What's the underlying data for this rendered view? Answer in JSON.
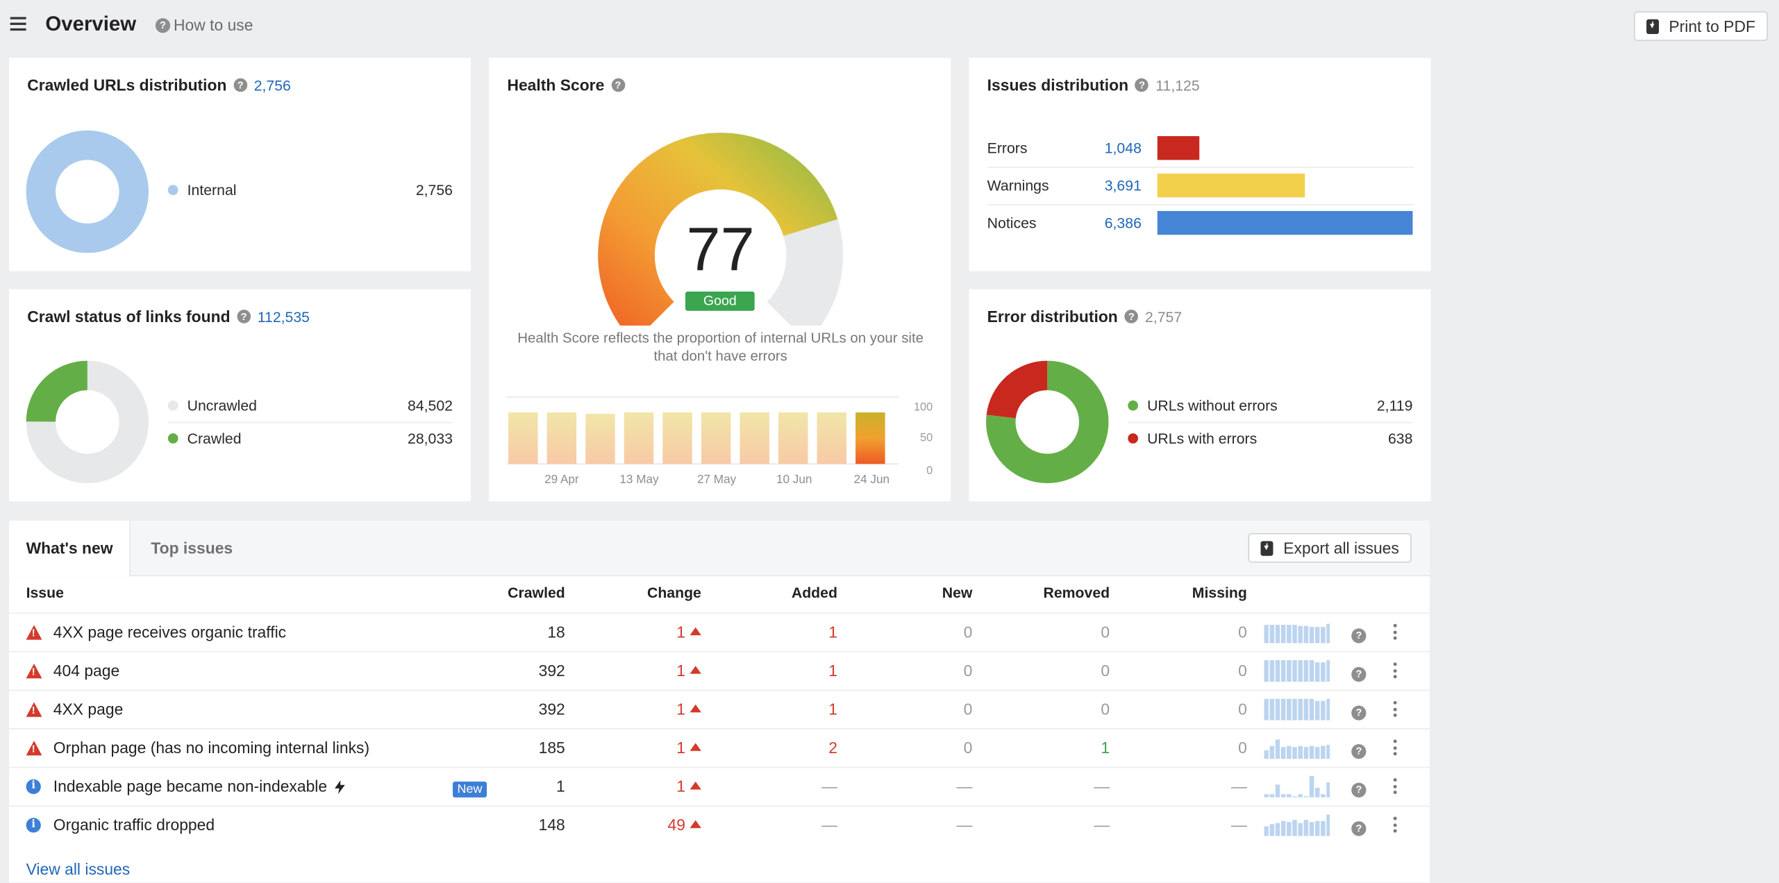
{
  "header": {
    "title": "Overview",
    "how_to_use": "How to use",
    "print_label": "Print to PDF"
  },
  "crawled_urls": {
    "title": "Crawled URLs distribution",
    "count": "2,756",
    "legend": [
      {
        "label": "Internal",
        "value": "2,756",
        "color": "#a9caec"
      }
    ]
  },
  "crawl_status": {
    "title": "Crawl status of links found",
    "count": "112,535",
    "legend": [
      {
        "label": "Uncrawled",
        "value": "84,502",
        "color": "#e7e8e9"
      },
      {
        "label": "Crawled",
        "value": "28,033",
        "color": "#64ae47"
      }
    ]
  },
  "health": {
    "title": "Health Score",
    "score": "77",
    "score_value": 77,
    "rating": "Good",
    "description": "Health Score reflects the proportion of internal URLs on your site that don't have errors",
    "chart_ticks_y": [
      "100",
      "50",
      "0"
    ],
    "chart_ticks_x": [
      "29 Apr",
      "13 May",
      "27 May",
      "10 Jun",
      "24 Jun"
    ],
    "bars": [
      77,
      77,
      75,
      77,
      77,
      77,
      77,
      77,
      77,
      77
    ]
  },
  "issues_dist": {
    "title": "Issues distribution",
    "count": "11,125",
    "rows": [
      {
        "label": "Errors",
        "value": "1,048",
        "num": 1048,
        "color": "#c8281e"
      },
      {
        "label": "Warnings",
        "value": "3,691",
        "num": 3691,
        "color": "#f3d04c"
      },
      {
        "label": "Notices",
        "value": "6,386",
        "num": 6386,
        "color": "#4685d6"
      }
    ]
  },
  "error_dist": {
    "title": "Error distribution",
    "count": "2,757",
    "legend": [
      {
        "label": "URLs without errors",
        "value": "2,119",
        "color": "#64ae47"
      },
      {
        "label": "URLs with errors",
        "value": "638",
        "color": "#c8281e"
      }
    ]
  },
  "table": {
    "tabs": [
      "What's new",
      "Top issues"
    ],
    "export_label": "Export all issues",
    "columns": {
      "issue": "Issue",
      "crawled": "Crawled",
      "change": "Change",
      "added": "Added",
      "new": "New",
      "removed": "Removed",
      "missing": "Missing"
    },
    "rows": [
      {
        "type": "error",
        "name": "4XX page receives organic traffic",
        "badge": "",
        "crawled": "18",
        "change": "1",
        "added": "1",
        "new": "0",
        "removed": "0",
        "missing": "0",
        "spark": [
          0.85,
          0.85,
          0.85,
          0.85,
          0.85,
          0.85,
          0.8,
          0.8,
          0.75,
          0.75,
          0.75,
          0.9
        ]
      },
      {
        "type": "error",
        "name": "404 page",
        "badge": "",
        "crawled": "392",
        "change": "1",
        "added": "1",
        "new": "0",
        "removed": "0",
        "missing": "0",
        "spark": [
          1,
          1,
          1,
          1,
          1,
          1,
          1,
          1,
          1,
          0.9,
          0.9,
          1
        ]
      },
      {
        "type": "error",
        "name": "4XX page",
        "badge": "",
        "crawled": "392",
        "change": "1",
        "added": "1",
        "new": "0",
        "removed": "0",
        "missing": "0",
        "spark": [
          1,
          1,
          1,
          1,
          1,
          1,
          1,
          1,
          1,
          0.9,
          0.9,
          1
        ]
      },
      {
        "type": "error",
        "name": "Orphan page (has no incoming internal links)",
        "badge": "",
        "crawled": "185",
        "change": "1",
        "added": "2",
        "new": "0",
        "removed": "1",
        "missing": "0",
        "spark": [
          0.4,
          0.6,
          0.9,
          0.55,
          0.6,
          0.55,
          0.6,
          0.55,
          0.6,
          0.55,
          0.6,
          0.65
        ]
      },
      {
        "type": "info",
        "name": "Indexable page became non-indexable",
        "badge": "New",
        "crawled": "1",
        "change": "1",
        "added": "—",
        "new": "—",
        "removed": "—",
        "missing": "—",
        "spark": [
          0.15,
          0.15,
          0.6,
          0.15,
          0.15,
          0,
          0.15,
          0,
          1,
          0.45,
          0.15,
          0.7
        ]
      },
      {
        "type": "info",
        "name": "Organic traffic dropped",
        "badge": "",
        "crawled": "148",
        "change": "49",
        "added": "—",
        "new": "—",
        "removed": "—",
        "missing": "—",
        "spark": [
          0.45,
          0.55,
          0.6,
          0.7,
          0.65,
          0.75,
          0.6,
          0.75,
          0.65,
          0.7,
          0.7,
          1
        ]
      }
    ],
    "view_all": "View all issues"
  }
}
